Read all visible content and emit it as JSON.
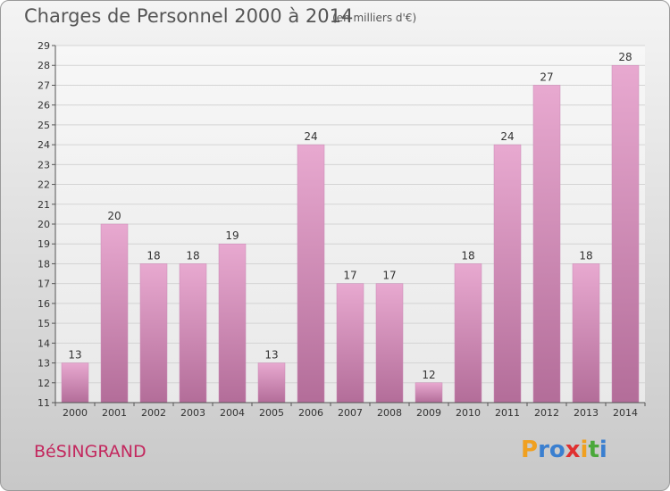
{
  "header": {
    "title": "Charges de Personnel 2000 à 2014",
    "subtitle": "(en milliers d'€)"
  },
  "footer": {
    "commune": "BéSINGRAND",
    "logo_letters": [
      {
        "ch": "P",
        "color": "#f0a020"
      },
      {
        "ch": "r",
        "color": "#3a7fd0"
      },
      {
        "ch": "o",
        "color": "#3a7fd0"
      },
      {
        "ch": "x",
        "color": "#e03030"
      },
      {
        "ch": "i",
        "color": "#f0a020"
      },
      {
        "ch": "t",
        "color": "#4aa83a"
      },
      {
        "ch": "i",
        "color": "#3a7fd0"
      }
    ]
  },
  "chart_data": {
    "type": "bar",
    "title": "Charges de Personnel 2000 à 2014",
    "subtitle": "(en milliers d'€)",
    "categories": [
      "2000",
      "2001",
      "2002",
      "2003",
      "2004",
      "2005",
      "2006",
      "2007",
      "2008",
      "2009",
      "2010",
      "2011",
      "2012",
      "2013",
      "2014"
    ],
    "values": [
      13,
      20,
      18,
      18,
      19,
      13,
      24,
      17,
      17,
      12,
      18,
      24,
      27,
      18,
      28
    ],
    "ylim": [
      11,
      29
    ],
    "yticks": [
      11,
      12,
      13,
      14,
      15,
      16,
      17,
      18,
      19,
      20,
      21,
      22,
      23,
      24,
      25,
      26,
      27,
      28,
      29
    ],
    "grid": true,
    "bar_color_top": "#e8a9d0",
    "bar_color_bottom": "#b36d99"
  }
}
